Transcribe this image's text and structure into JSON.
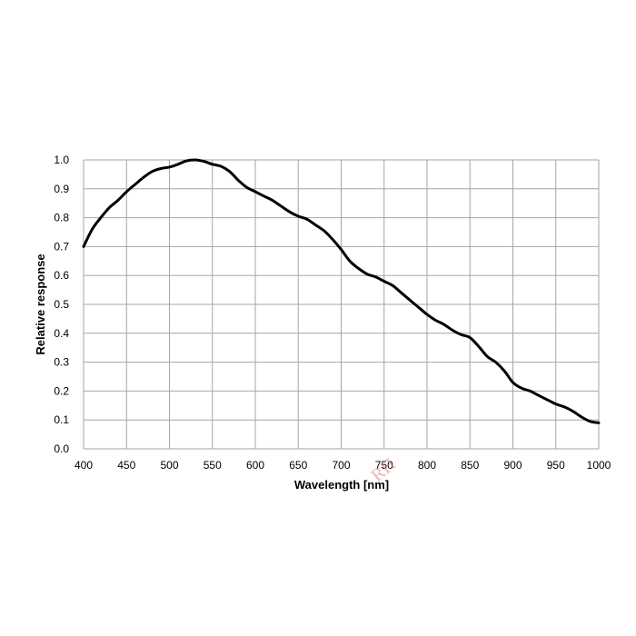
{
  "chart_data": {
    "type": "line",
    "title": "",
    "xlabel": "Wavelength [nm]",
    "ylabel": "Relative response",
    "xlim": [
      400,
      1000
    ],
    "ylim": [
      0,
      1.0
    ],
    "x_ticks": [
      400,
      450,
      500,
      550,
      600,
      650,
      700,
      750,
      800,
      850,
      900,
      950,
      1000
    ],
    "y_ticks": [
      "0.0",
      "0.1",
      "0.2",
      "0.3",
      "0.4",
      "0.5",
      "0.6",
      "0.7",
      "0.8",
      "0.9",
      "1.0"
    ],
    "grid": true,
    "legend": "none",
    "line_color": "#000000",
    "grid_color": "#a6a6a6",
    "series": [
      {
        "x": [
          400,
          410,
          420,
          430,
          440,
          450,
          460,
          470,
          480,
          490,
          500,
          510,
          520,
          530,
          540,
          550,
          560,
          570,
          580,
          590,
          600,
          610,
          620,
          630,
          640,
          650,
          660,
          670,
          680,
          690,
          700,
          710,
          720,
          730,
          740,
          750,
          760,
          770,
          780,
          790,
          800,
          810,
          820,
          830,
          840,
          850,
          860,
          870,
          880,
          890,
          900,
          910,
          920,
          930,
          940,
          950,
          960,
          970,
          980,
          990,
          1000
        ],
        "y": [
          0.7,
          0.76,
          0.8,
          0.835,
          0.86,
          0.89,
          0.915,
          0.94,
          0.96,
          0.97,
          0.975,
          0.985,
          0.997,
          1.0,
          0.995,
          0.985,
          0.978,
          0.96,
          0.93,
          0.905,
          0.89,
          0.875,
          0.86,
          0.84,
          0.82,
          0.805,
          0.795,
          0.775,
          0.755,
          0.725,
          0.69,
          0.65,
          0.625,
          0.605,
          0.595,
          0.58,
          0.565,
          0.54,
          0.515,
          0.49,
          0.465,
          0.445,
          0.43,
          0.41,
          0.395,
          0.385,
          0.355,
          0.32,
          0.3,
          0.27,
          0.23,
          0.21,
          0.2,
          0.185,
          0.17,
          0.155,
          0.145,
          0.13,
          0.11,
          0.095,
          0.09
        ]
      }
    ]
  },
  "watermark": {
    "text": "RH"
  }
}
